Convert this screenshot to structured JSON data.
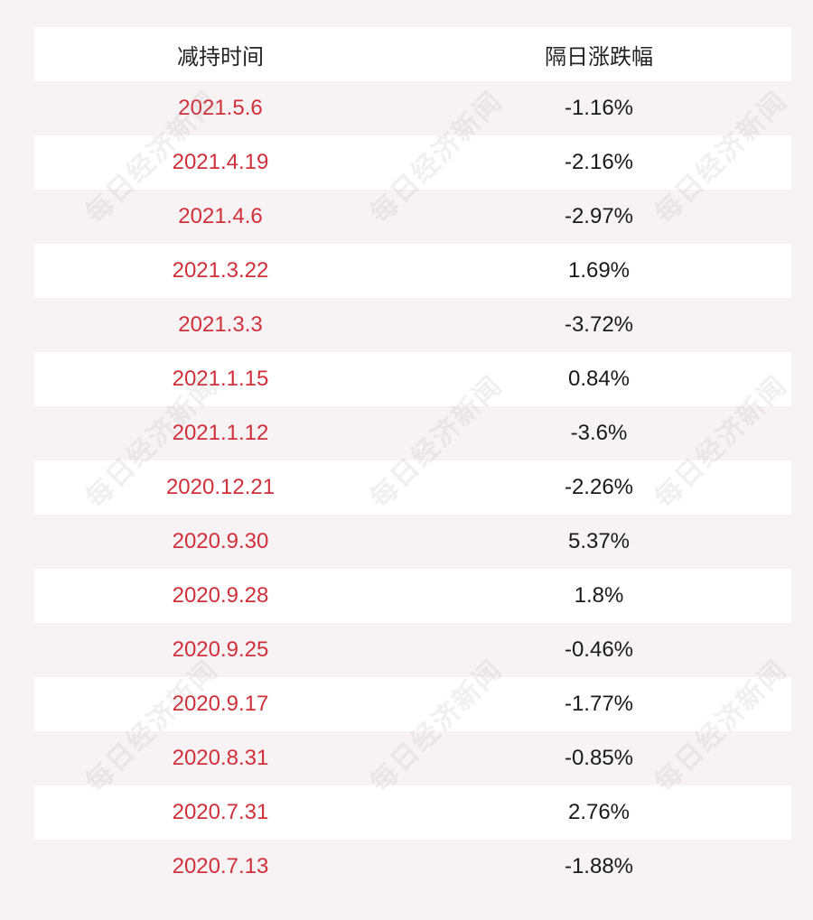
{
  "table": {
    "headers": {
      "date": "减持时间",
      "change": "隔日涨跌幅"
    },
    "rows": [
      {
        "date": "2021.5.6",
        "change": "-1.16%"
      },
      {
        "date": "2021.4.19",
        "change": "-2.16%"
      },
      {
        "date": "2021.4.6",
        "change": "-2.97%"
      },
      {
        "date": "2021.3.22",
        "change": "1.69%"
      },
      {
        "date": "2021.3.3",
        "change": "-3.72%"
      },
      {
        "date": "2021.1.15",
        "change": "0.84%"
      },
      {
        "date": "2021.1.12",
        "change": "-3.6%"
      },
      {
        "date": "2020.12.21",
        "change": "-2.26%"
      },
      {
        "date": "2020.9.30",
        "change": "5.37%"
      },
      {
        "date": "2020.9.28",
        "change": "1.8%"
      },
      {
        "date": "2020.9.25",
        "change": "-0.46%"
      },
      {
        "date": "2020.9.17",
        "change": "-1.77%"
      },
      {
        "date": "2020.8.31",
        "change": "-0.85%"
      },
      {
        "date": "2020.7.31",
        "change": "2.76%"
      },
      {
        "date": "2020.7.13",
        "change": "-1.88%"
      }
    ]
  },
  "watermark": "每日经济新闻",
  "colors": {
    "date_text": "#d0303a",
    "value_text": "#1a1a1a",
    "row_white": "#ffffff",
    "row_tint": "#f7f3f4"
  }
}
